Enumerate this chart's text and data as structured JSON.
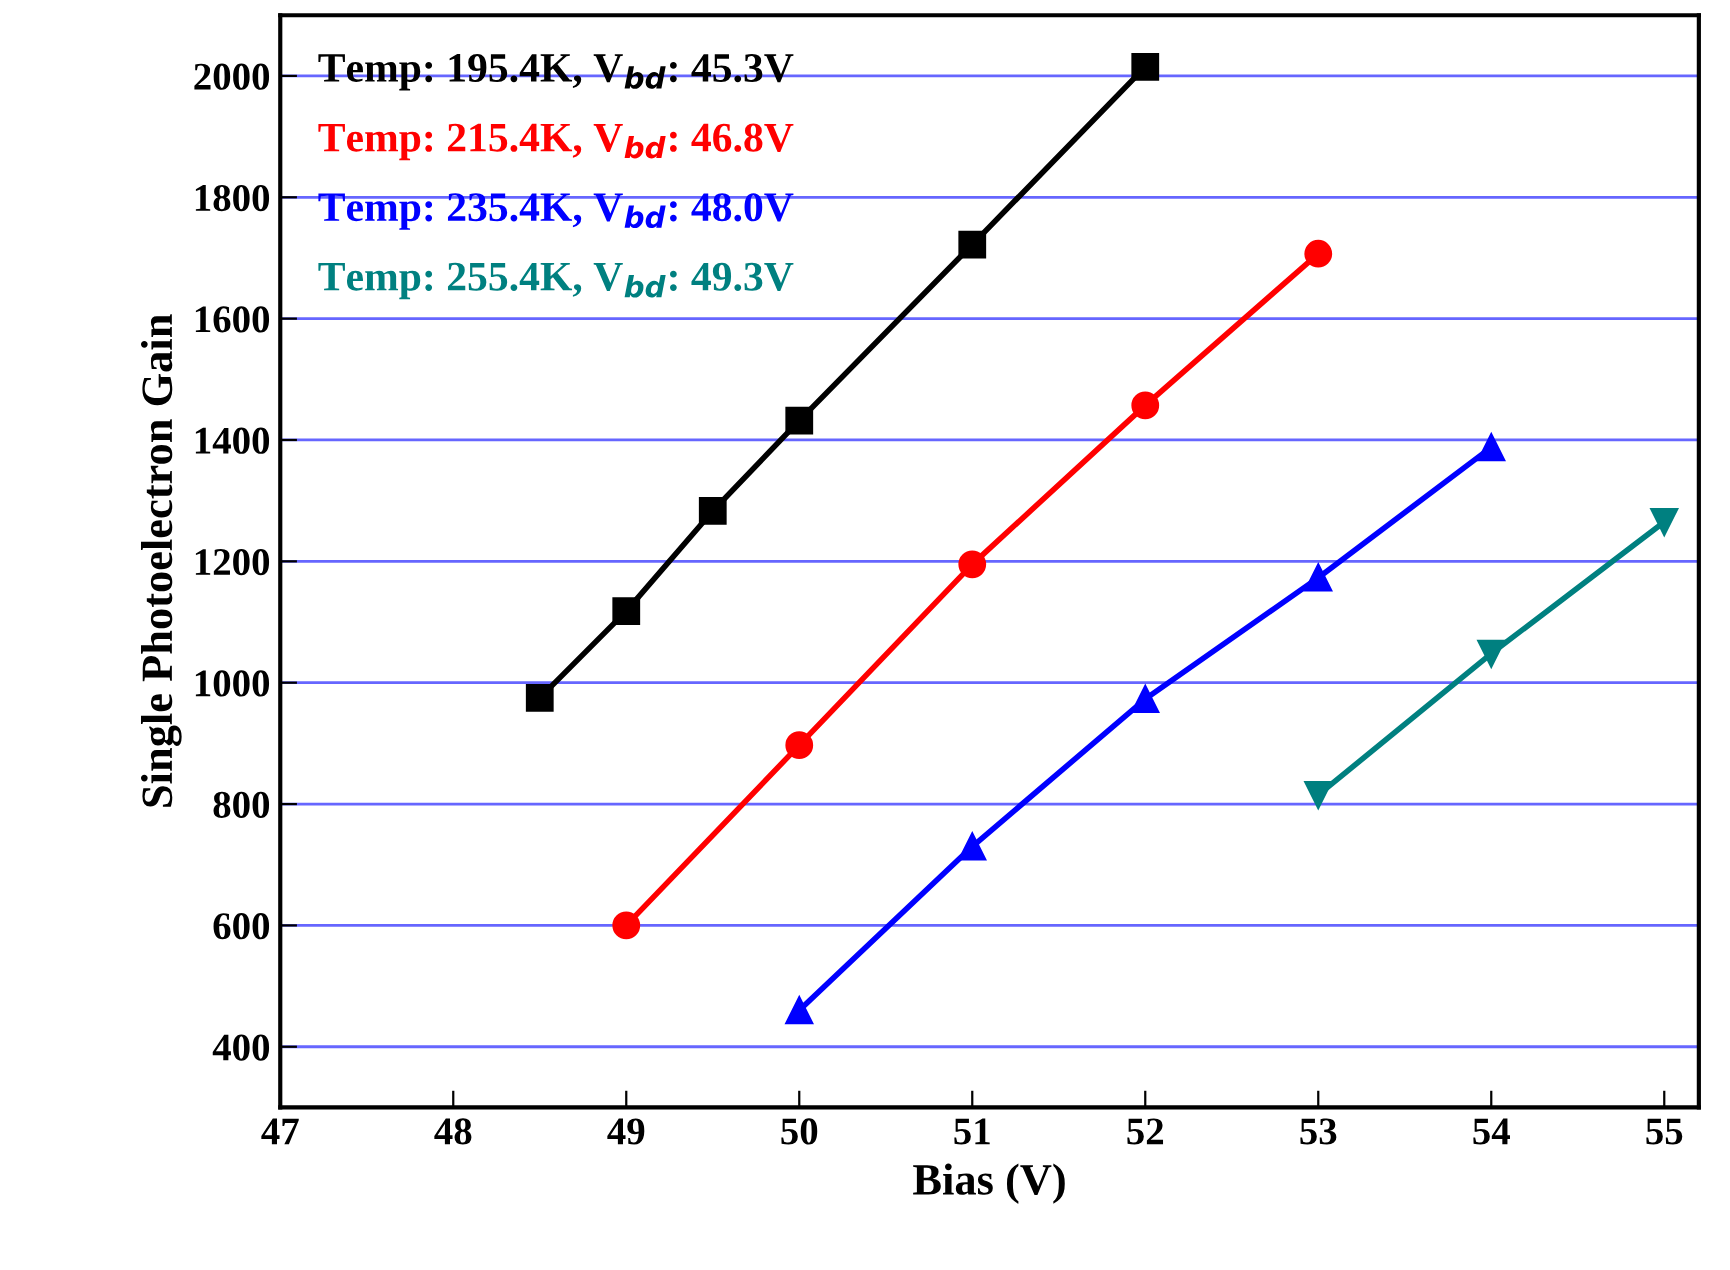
{
  "chart_data": {
    "type": "line",
    "xlabel": "Bias (V)",
    "ylabel": "Single Photoelectron Gain",
    "xlim": [
      47,
      55.2
    ],
    "xticks": [
      47,
      48,
      49,
      50,
      51,
      52,
      53,
      54,
      55
    ],
    "ylim": [
      300,
      2100
    ],
    "yticks": [
      400,
      600,
      800,
      1000,
      1200,
      1400,
      1600,
      1800,
      2000
    ],
    "grid": "y",
    "legend": "top left",
    "series": [
      {
        "name": "Temp: 195.4K, V$_{bd}$: 45.3V",
        "color": "#000000",
        "marker": "square",
        "x": [
          48.5,
          49,
          49.5,
          50,
          51,
          52
        ],
        "values": [
          975,
          1118,
          1283,
          1432,
          1722,
          2015
        ]
      },
      {
        "name": "Temp: 215.4K, V$_{bd}$: 46.8V",
        "color": "#ff0000",
        "marker": "circle",
        "x": [
          49,
          50,
          51,
          52,
          53
        ],
        "values": [
          600,
          897,
          1195,
          1457,
          1707
        ]
      },
      {
        "name": "Temp: 235.4K, V$_{bd}$: 48.0V",
        "color": "#0000ff",
        "marker": "triangle",
        "x": [
          50,
          51,
          52,
          53,
          54
        ],
        "values": [
          460,
          730,
          973,
          1173,
          1388
        ]
      },
      {
        "name": "Temp: 255.4K, V$_{bd}$: 49.3V",
        "color": "#008080",
        "marker": "triangle_down",
        "x": [
          53,
          54,
          55
        ],
        "values": [
          815,
          1048,
          1265
        ]
      }
    ]
  }
}
